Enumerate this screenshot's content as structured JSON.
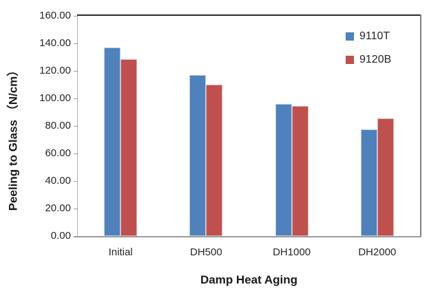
{
  "chart_data": {
    "type": "bar",
    "categories": [
      "Initial",
      "DH500",
      "DH1000",
      "DH2000"
    ],
    "series": [
      {
        "name": "9110T",
        "color": "#4F81BD",
        "border_color": "#B9CDE8",
        "values": [
          137,
          117,
          96,
          77.5
        ]
      },
      {
        "name": "9120B",
        "color": "#C0504D",
        "border_color": "#E2B3B1",
        "values": [
          128.5,
          110,
          94.5,
          85.5
        ]
      }
    ],
    "title": "",
    "xlabel": "Damp Heat Aging",
    "ylabel": "Peeling to Glass （N/cm）",
    "ylim": [
      0,
      160
    ],
    "ytick_step": 20,
    "ytick_labels": [
      "0.00",
      "20.00",
      "40.00",
      "60.00",
      "80.00",
      "100.00",
      "120.00",
      "140.00",
      "160.00"
    ],
    "grid": false,
    "legend_position": "top-right-inside"
  }
}
